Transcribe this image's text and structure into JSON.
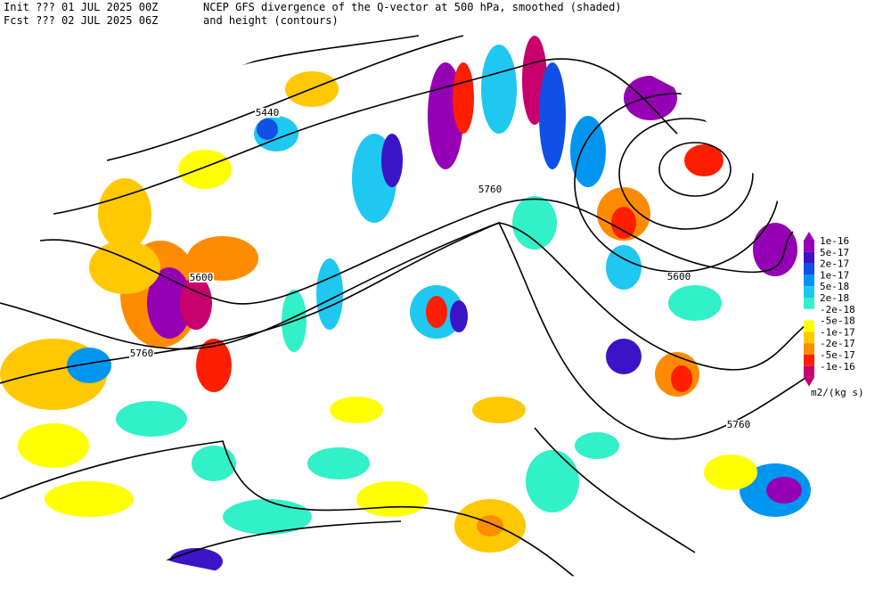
{
  "header": {
    "init": "Init  ??? 01 JUL 2025 00Z",
    "title": "NCEP GFS divergence of the Q-vector at 500 hPa, smoothed (shaded)",
    "forecast": "Fcst ??? 02 JUL 2025 06Z",
    "subtitle": "and height (contours)"
  },
  "contour_labels": [
    "5440",
    "5600",
    "5760",
    "5760",
    "5600",
    "5760"
  ],
  "legend": {
    "units": "m2/(kg s)",
    "entries": [
      {
        "label": "1e-16",
        "color": "#9600b4"
      },
      {
        "label": "5e-17",
        "color": "#3c14c8"
      },
      {
        "label": "2e-17",
        "color": "#1050e6"
      },
      {
        "label": "1e-17",
        "color": "#0096f0"
      },
      {
        "label": "5e-18",
        "color": "#1ec8f0"
      },
      {
        "label": "2e-18",
        "color": "#32f0c8"
      },
      {
        "label": "-2e-18",
        "color": "#ffffff"
      },
      {
        "label": "-5e-18",
        "color": "#ffff00"
      },
      {
        "label": "-1e-17",
        "color": "#ffc800"
      },
      {
        "label": "-2e-17",
        "color": "#ff8c00"
      },
      {
        "label": "-5e-17",
        "color": "#ff1e00"
      },
      {
        "label": "-1e-16",
        "color": "#c8006e"
      }
    ]
  }
}
